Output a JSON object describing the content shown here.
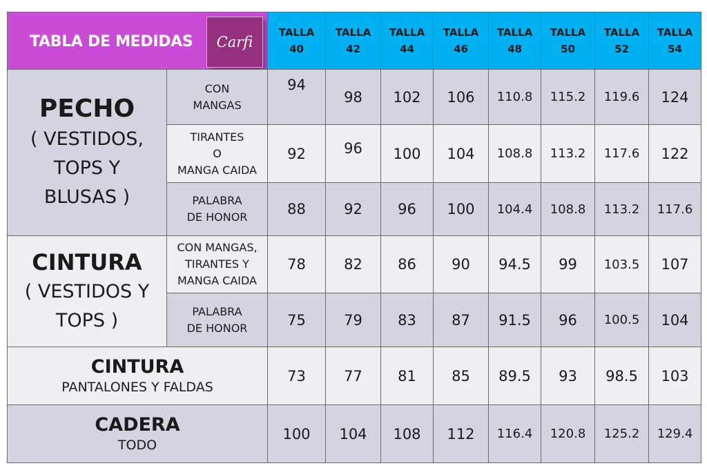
{
  "title": "TABLA DE MEDIDAS",
  "logo_text": "Carfi",
  "size_label": "TALLA",
  "sizes": [
    "40",
    "42",
    "44",
    "46",
    "48",
    "50",
    "52",
    "54"
  ],
  "groups": {
    "pecho": {
      "main": "PECHO",
      "sub": [
        "( VESTIDOS,",
        "TOPS   Y",
        "BLUSAS )"
      ]
    },
    "cintura_vestidos": {
      "main": "CINTURA",
      "sub": [
        "( VESTIDOS Y",
        "TOPS )"
      ]
    },
    "cintura_pantalones": {
      "main": "CINTURA",
      "sub": "PANTALONES Y FALDAS"
    },
    "cadera": {
      "main": "CADERA",
      "sub": "TODO"
    }
  },
  "rows": [
    {
      "label": [
        "CON",
        "MANGAS"
      ],
      "values": [
        "94",
        "98",
        "102",
        "106",
        "110.8",
        "115.2",
        "119.6",
        "124"
      ]
    },
    {
      "label": [
        "TIRANTES",
        "O",
        "MANGA CAIDA"
      ],
      "values": [
        "92",
        "96",
        "100",
        "104",
        "108.8",
        "113.2",
        "117.6",
        "122"
      ]
    },
    {
      "label": [
        "PALABRA",
        "DE HONOR"
      ],
      "values": [
        "88",
        "92",
        "96",
        "100",
        "104.4",
        "108.8",
        "113.2",
        "117.6"
      ]
    },
    {
      "label": [
        "CON MANGAS,",
        "TIRANTES Y",
        "MANGA CAIDA"
      ],
      "values": [
        "78",
        "82",
        "86",
        "90",
        "94.5",
        "99",
        "103.5",
        "107"
      ]
    },
    {
      "label": [
        "PALABRA",
        "DE HONOR"
      ],
      "values": [
        "75",
        "79",
        "83",
        "87",
        "91.5",
        "96",
        "100.5",
        "104"
      ]
    },
    {
      "label": null,
      "values": [
        "73",
        "77",
        "81",
        "85",
        "89.5",
        "93",
        "98.5",
        "103"
      ]
    },
    {
      "label": null,
      "values": [
        "100",
        "104",
        "108",
        "112",
        "116.4",
        "120.8",
        "125.2",
        "129.4"
      ]
    }
  ],
  "colors": {
    "title_bg": "#c94bd6",
    "logo_bg": "#95307f",
    "header_bg": "#00b0f0",
    "row_dark": "#d4d3e0",
    "row_light": "#efeef3"
  }
}
